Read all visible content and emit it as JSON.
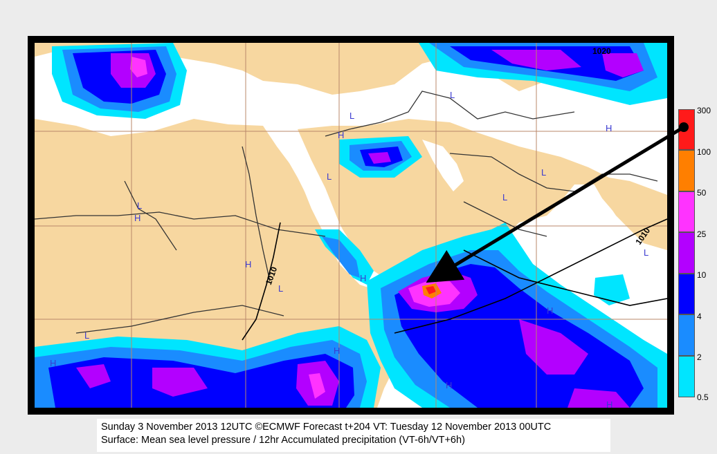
{
  "legend": {
    "title_mark": "",
    "colors": {
      "300": "#ff1a1a",
      "100": "#ff7f00",
      "50": "#ff33ff",
      "25": "#b300ff",
      "10": "#0000ff",
      "4": "#1a8cff",
      "2": "#00e5ff",
      "land": "#f7d7a0",
      "sea": "#ffffff"
    },
    "labels": [
      "300",
      "100",
      "50",
      "25",
      "10",
      "4",
      "2",
      "0.5"
    ]
  },
  "map": {
    "pressure_labels": [
      "1020",
      "1010",
      "1010"
    ],
    "pressure_centers": [
      "H",
      "L",
      "H",
      "L",
      "L",
      "H",
      "H",
      "L",
      "L",
      "H",
      "L",
      "L",
      "H",
      "H",
      "H",
      "L",
      "H",
      "L",
      "H"
    ]
  },
  "caption": {
    "line1": "Sunday 3 November 2013 12UTC ©ECMWF Forecast t+204 VT: Tuesday 12 November 2013 00UTC",
    "line2": "Surface: Mean sea level pressure / 12hr Accumulated precipitation (VT-6h/VT+6h)"
  }
}
